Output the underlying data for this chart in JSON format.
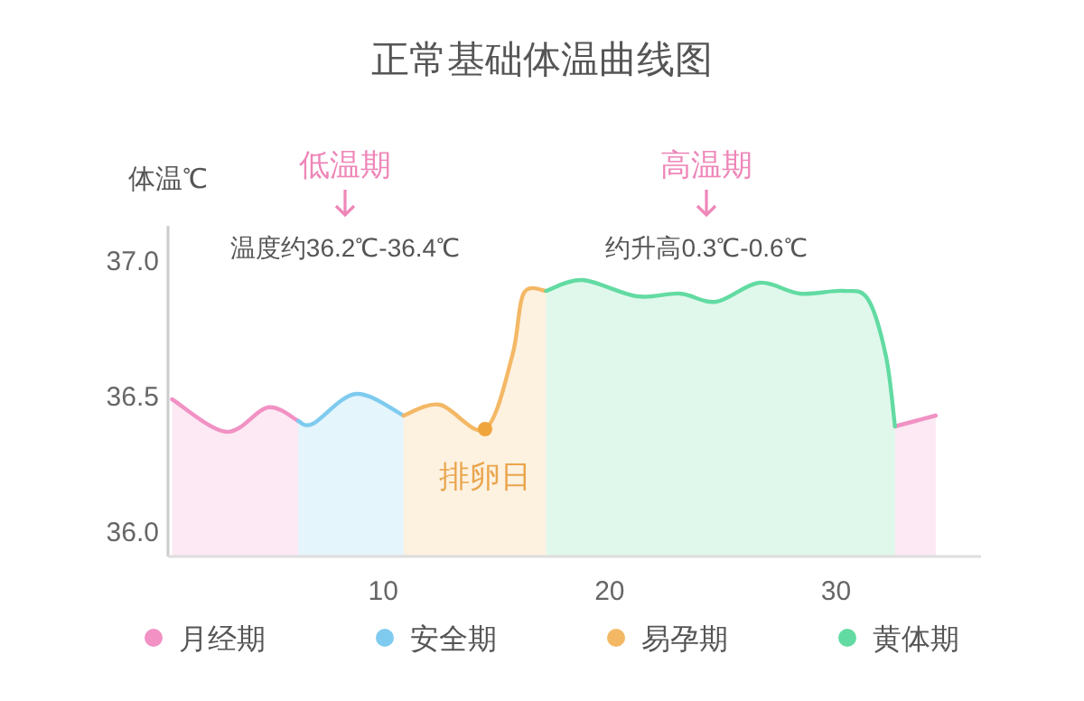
{
  "chart_data": {
    "type": "area",
    "title": "正常基础体温曲线图",
    "ylabel": "体温℃",
    "xlim": [
      0.5,
      36.4
    ],
    "ylim": [
      35.91,
      37.13
    ],
    "xticks": [
      10,
      20,
      30
    ],
    "yticks": [
      {
        "value": 36,
        "label": "36.0"
      },
      {
        "value": 36.5,
        "label": "36.5"
      },
      {
        "value": 37,
        "label": "37.0"
      }
    ],
    "grid": false,
    "legend": "bottom",
    "series": [
      {
        "name": "月经期",
        "color": "#f191c4",
        "x": [
          0.68,
          3.07,
          4.9,
          6.25,
          null,
          32.6,
          34.4
        ],
        "values": [
          36.49,
          36.37,
          36.46,
          36.41,
          null,
          36.39,
          36.43
        ]
      },
      {
        "name": "安全期",
        "color": "#7fcbef",
        "x": [
          6.25,
          6.9,
          8.8,
          10.9
        ],
        "values": [
          36.41,
          36.4,
          36.51,
          36.43
        ]
      },
      {
        "name": "易孕期",
        "color": "#f4b865",
        "x": [
          10.9,
          12.5,
          14.5,
          15.7,
          16.2,
          17.2
        ],
        "values": [
          36.43,
          36.47,
          36.38,
          36.65,
          36.88,
          36.89
        ]
      },
      {
        "name": "黄体期",
        "color": "#62dba2",
        "x": [
          17.2,
          18.8,
          21.2,
          23.1,
          24.7,
          26.6,
          28.4,
          30.3,
          31.4,
          32.2,
          32.6
        ],
        "values": [
          36.89,
          36.93,
          36.87,
          36.88,
          36.85,
          36.92,
          36.88,
          36.89,
          36.86,
          36.65,
          36.39
        ]
      }
    ],
    "annotations": [
      "低温期",
      "温度约36.2℃-36.4℃",
      "高温期",
      "约升高0.3℃-0.6℃",
      {
        "text": "排卵日",
        "x": 14.5,
        "y": 36.38
      }
    ]
  }
}
